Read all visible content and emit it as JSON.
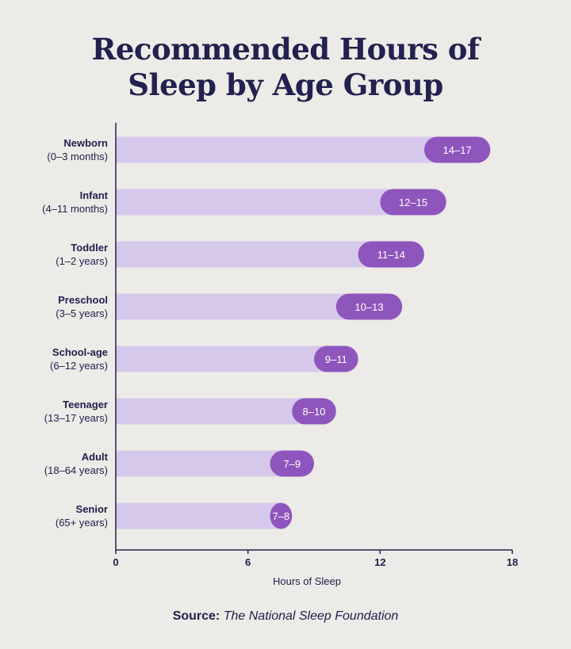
{
  "title": {
    "line1": "Recommended Hours of",
    "line2": "Sleep by Age Group"
  },
  "source": {
    "label": "Source:",
    "text": "The National Sleep Foundation"
  },
  "colors": {
    "background": "#ecebe7",
    "bar_light": "#d6c8eb",
    "bar_dark": "#8e56bd",
    "text": "#22214f",
    "axis": "#22214f"
  },
  "chart_data": {
    "type": "bar",
    "orientation": "horizontal",
    "title": "Recommended Hours of Sleep by Age Group",
    "xlabel": "Hours of Sleep",
    "ylabel": "",
    "xlim": [
      0,
      18
    ],
    "xticks": [
      "0",
      "6",
      "12",
      "18"
    ],
    "categories": [
      {
        "name": "Newborn",
        "sub": "(0–3 months)",
        "min": 14,
        "max": 17,
        "label": "14–17"
      },
      {
        "name": "Infant",
        "sub": "(4–11 months)",
        "min": 12,
        "max": 15,
        "label": "12–15"
      },
      {
        "name": "Toddler",
        "sub": "(1–2 years)",
        "min": 11,
        "max": 14,
        "label": "11–14"
      },
      {
        "name": "Preschool",
        "sub": "(3–5 years)",
        "min": 10,
        "max": 13,
        "label": "10–13"
      },
      {
        "name": "School-age",
        "sub": "(6–12 years)",
        "min": 9,
        "max": 11,
        "label": "9–11"
      },
      {
        "name": "Teenager",
        "sub": "(13–17 years)",
        "min": 8,
        "max": 10,
        "label": "8–10"
      },
      {
        "name": "Adult",
        "sub": "(18–64 years)",
        "min": 7,
        "max": 9,
        "label": "7–9"
      },
      {
        "name": "Senior",
        "sub": "(65+ years)",
        "min": 7,
        "max": 8,
        "label": "7–8"
      }
    ]
  }
}
